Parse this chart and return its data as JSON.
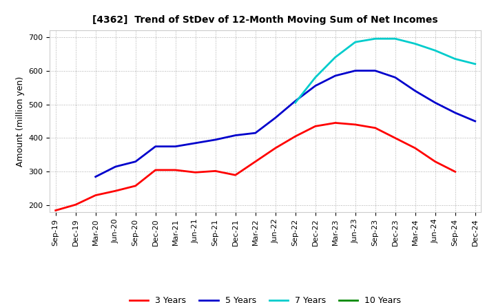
{
  "title": "[4362]  Trend of StDev of 12-Month Moving Sum of Net Incomes",
  "ylabel": "Amount (million yen)",
  "ylim": [
    180,
    720
  ],
  "yticks": [
    200,
    300,
    400,
    500,
    600,
    700
  ],
  "background_color": "#ffffff",
  "grid_color": "#aaaaaa",
  "x_labels": [
    "Sep-19",
    "Dec-19",
    "Mar-20",
    "Jun-20",
    "Sep-20",
    "Dec-20",
    "Mar-21",
    "Jun-21",
    "Sep-21",
    "Dec-21",
    "Mar-22",
    "Jun-22",
    "Sep-22",
    "Dec-22",
    "Mar-23",
    "Jun-23",
    "Sep-23",
    "Dec-23",
    "Mar-24",
    "Jun-24",
    "Sep-24",
    "Dec-24"
  ],
  "series_order": [
    "3 Years",
    "5 Years",
    "7 Years",
    "10 Years"
  ],
  "series": {
    "3 Years": {
      "color": "#ff0000",
      "data": [
        185,
        202,
        230,
        243,
        258,
        305,
        305,
        298,
        302,
        290,
        330,
        370,
        405,
        435,
        445,
        440,
        430,
        400,
        370,
        330,
        300,
        null
      ]
    },
    "5 Years": {
      "color": "#0000cc",
      "data": [
        null,
        null,
        285,
        315,
        330,
        375,
        375,
        385,
        395,
        408,
        415,
        460,
        510,
        555,
        585,
        600,
        600,
        580,
        540,
        505,
        475,
        450
      ]
    },
    "7 Years": {
      "color": "#00cccc",
      "data": [
        null,
        null,
        null,
        null,
        null,
        null,
        null,
        null,
        null,
        null,
        null,
        null,
        505,
        580,
        640,
        685,
        695,
        695,
        680,
        660,
        635,
        620
      ]
    },
    "10 Years": {
      "color": "#008800",
      "data": [
        null,
        null,
        null,
        null,
        null,
        null,
        null,
        null,
        null,
        null,
        null,
        null,
        null,
        null,
        null,
        null,
        null,
        null,
        null,
        null,
        null,
        null
      ]
    }
  },
  "legend_fontsize": 9,
  "title_fontsize": 10,
  "ylabel_fontsize": 9,
  "tick_fontsize": 8
}
